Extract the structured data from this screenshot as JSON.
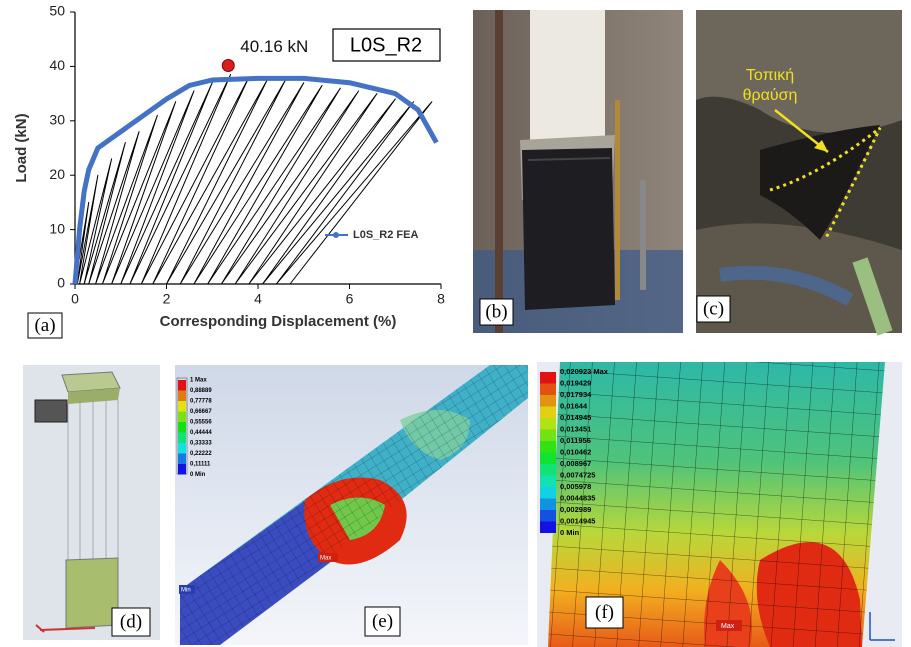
{
  "chart_data": {
    "type": "line",
    "xlabel": "Corresponding Displacement (%)",
    "ylabel": "Load (kN)",
    "xlim": [
      0,
      8
    ],
    "ylim": [
      0,
      50
    ],
    "xticks": [
      0,
      2,
      4,
      6,
      8
    ],
    "yticks": [
      0,
      10,
      20,
      30,
      40,
      50
    ],
    "label_box": "L0S_R2",
    "peak": {
      "label": "40.16 kN",
      "x": 3.35,
      "y": 40.16,
      "color": "#d62020"
    },
    "series": [
      {
        "color": "#000000",
        "x": [
          0,
          0.3,
          0.05,
          0.5,
          0.1,
          0.8,
          0.2,
          1.1,
          0.3,
          1.4,
          0.45,
          1.8,
          0.6,
          2.2,
          0.8,
          2.6,
          1.0,
          3.0,
          1.2,
          3.4,
          1.45,
          3.8,
          1.7,
          4.2,
          2.0,
          4.6,
          2.3,
          5.0,
          2.6,
          5.4,
          2.9,
          5.8,
          3.2,
          6.2,
          3.5,
          6.6,
          3.8,
          7.0,
          4.1,
          7.4,
          4.4,
          7.8,
          4.7
        ],
        "values": [
          0,
          15,
          0,
          20,
          0,
          23,
          0,
          26,
          0,
          28,
          0,
          31,
          0,
          33.5,
          0,
          35.5,
          0,
          37,
          0,
          38.5,
          0,
          38,
          0,
          37.5,
          0,
          37.5,
          0,
          37,
          0,
          36.5,
          0,
          36,
          0,
          35.5,
          0,
          35,
          0,
          34,
          0,
          33.5,
          0,
          33.5,
          0
        ]
      },
      {
        "name": "L0S_R2 FEA",
        "color": "#4472c4",
        "x": [
          0,
          0.05,
          0.1,
          0.2,
          0.3,
          0.5,
          1,
          1.5,
          2,
          2.5,
          3,
          4,
          5,
          6,
          7,
          7.5,
          7.9
        ],
        "values": [
          0,
          5,
          10,
          17,
          21,
          25,
          28,
          31,
          34,
          36.5,
          37.5,
          37.8,
          37.8,
          37,
          35,
          32,
          26
        ]
      }
    ]
  },
  "figure": {
    "panel_labels": [
      "(a)",
      "(b)",
      "(c)",
      "(d)",
      "(e)",
      "(f)"
    ],
    "photo_c_annotation": [
      "Τοπική",
      "θραύση"
    ],
    "contour_e": {
      "legend": [
        "1 Max",
        "0,88889",
        "0,77778",
        "0,66667",
        "0,55556",
        "0,44444",
        "0,33333",
        "0,22222",
        "0,11111",
        "0 Min"
      ],
      "max_tag": "Max",
      "min_tag": "Min"
    },
    "contour_f": {
      "legend": [
        "0,020923 Max",
        "0,019429",
        "0,017934",
        "0,01644",
        "0,014945",
        "0,013451",
        "0,011956",
        "0,010462",
        "0,008967",
        "0,0074725",
        "0,005978",
        "0,0044835",
        "0,002989",
        "0,0014945",
        "0 Min"
      ],
      "max_tag": "Max"
    }
  }
}
